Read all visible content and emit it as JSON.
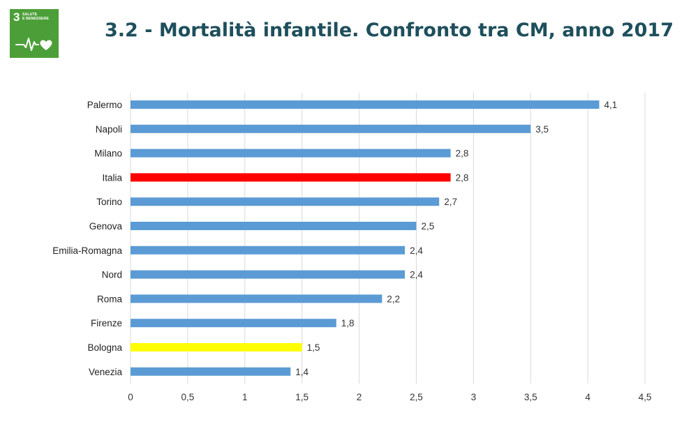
{
  "header": {
    "title": "3.2 - Mortalità infantile. Confronto tra CM, anno 2017",
    "badge": {
      "number": "3",
      "line1": "SALUTE",
      "line2": "E BENESSERE",
      "icon": "heartbeat-heart-icon",
      "color": "#4c9f38"
    }
  },
  "chart_data": {
    "type": "bar",
    "orientation": "horizontal",
    "title": "",
    "xlabel": "",
    "ylabel": "",
    "categories": [
      "Palermo",
      "Napoli",
      "Milano",
      "Italia",
      "Torino",
      "Genova",
      "Emilia-Romagna",
      "Nord",
      "Roma",
      "Firenze",
      "Bologna",
      "Venezia"
    ],
    "values": [
      4.1,
      3.5,
      2.8,
      2.8,
      2.7,
      2.5,
      2.4,
      2.4,
      2.2,
      1.8,
      1.5,
      1.4
    ],
    "value_labels": [
      "4,1",
      "3,5",
      "2,8",
      "2,8",
      "2,7",
      "2,5",
      "2,4",
      "2,4",
      "2,2",
      "1,8",
      "1,5",
      "1,4"
    ],
    "colors": [
      "#5b9bd5",
      "#5b9bd5",
      "#5b9bd5",
      "#ff0000",
      "#5b9bd5",
      "#5b9bd5",
      "#5b9bd5",
      "#5b9bd5",
      "#5b9bd5",
      "#5b9bd5",
      "#ffff00",
      "#5b9bd5"
    ],
    "xlim": [
      0,
      4.5
    ],
    "xticks": [
      0,
      0.5,
      1,
      1.5,
      2,
      2.5,
      3,
      3.5,
      4,
      4.5
    ],
    "xtick_labels": [
      "0",
      "0,5",
      "1",
      "1,5",
      "2",
      "2,5",
      "3",
      "3,5",
      "4",
      "4,5"
    ],
    "grid": "vertical",
    "legend": "none"
  }
}
